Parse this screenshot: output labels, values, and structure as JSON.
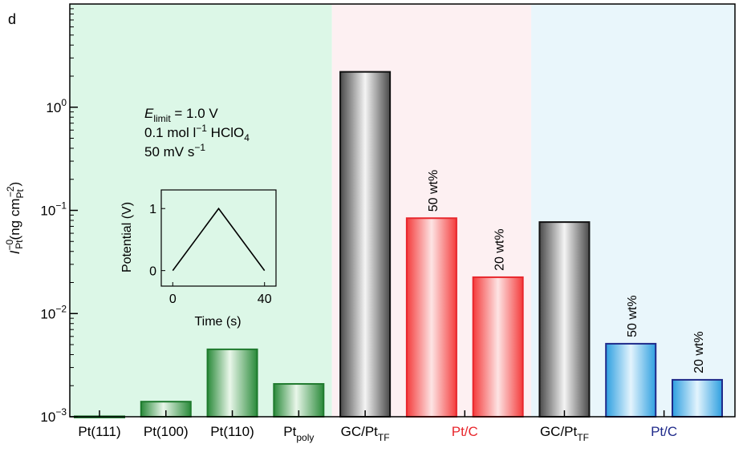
{
  "panel_label": "d",
  "chart_data": {
    "type": "bar",
    "yscale": "log",
    "ylim": [
      0.001,
      10
    ],
    "ylabel": {
      "main": "I",
      "main_sup": "−0",
      "main_sub": "Pt",
      "unit_open": "(ng cm",
      "unit_sub": "Pt",
      "unit_sup": "−2",
      "unit_close": ")"
    },
    "yticks": [
      {
        "value": 1,
        "base": "10",
        "exp": "0"
      },
      {
        "value": 0.1,
        "base": "10",
        "exp": "−1"
      },
      {
        "value": 0.01,
        "base": "10",
        "exp": "−2"
      },
      {
        "value": 0.001,
        "base": "10",
        "exp": "−3"
      }
    ],
    "groups": [
      {
        "name": "single-crystal",
        "color": "#dcf7e7"
      },
      {
        "name": "pt-c-ethanol",
        "color": "#fdf0f2"
      },
      {
        "name": "pt-c-water",
        "color": "#e9f6fb"
      }
    ],
    "bars": [
      {
        "value": 0.00101,
        "group": 0,
        "style": "green"
      },
      {
        "value": 0.0014,
        "group": 0,
        "style": "green"
      },
      {
        "value": 0.0045,
        "group": 0,
        "style": "green"
      },
      {
        "value": 0.00208,
        "group": 0,
        "style": "green"
      },
      {
        "value": 2.2,
        "group": 1,
        "style": "gray"
      },
      {
        "value": 0.084,
        "group": 1,
        "style": "red",
        "label": "50 wt%"
      },
      {
        "value": 0.0225,
        "group": 1,
        "style": "red",
        "label": "20 wt%"
      },
      {
        "value": 0.077,
        "group": 2,
        "style": "gray"
      },
      {
        "value": 0.0051,
        "group": 2,
        "style": "blue",
        "label": "50 wt%"
      },
      {
        "value": 0.00228,
        "group": 2,
        "style": "blue",
        "label": "20 wt%"
      }
    ],
    "xlabels": [
      {
        "text": "Pt(111)",
        "sub": "",
        "color": "#000000"
      },
      {
        "text": "Pt(100)",
        "sub": "",
        "color": "#000000"
      },
      {
        "text": "Pt(110)",
        "sub": "",
        "color": "#000000"
      },
      {
        "text": "Pt",
        "sub": "poly",
        "color": "#000000"
      },
      {
        "text": "GC/Pt",
        "sub": "TF",
        "color": "#000000"
      },
      {
        "text": "Pt/C",
        "sub": "",
        "color": "#e8262c"
      },
      {
        "text": "GC/Pt",
        "sub": "TF",
        "color": "#000000"
      },
      {
        "text": "Pt/C",
        "sub": "",
        "color": "#1f2a8a"
      }
    ],
    "conditions": {
      "line1_var": "E",
      "line1_sub": "limit",
      "line1_rest": " = 1.0 V",
      "line2_main": "0.1 mol l",
      "line2_sup": "−1",
      "line2_rest": " HClO",
      "line2_sub": "4",
      "line3_main": "50 mV s",
      "line3_sup": "−1"
    },
    "inset": {
      "type": "line",
      "xlabel": "Time (s)",
      "ylabel": "Potential (V)",
      "xticks": [
        0,
        40
      ],
      "yticks": [
        0,
        1
      ],
      "xlim": [
        -5,
        45
      ],
      "ylim": [
        -0.25,
        1.3
      ],
      "x": [
        0,
        20,
        40
      ],
      "y": [
        0,
        1,
        0
      ]
    }
  }
}
